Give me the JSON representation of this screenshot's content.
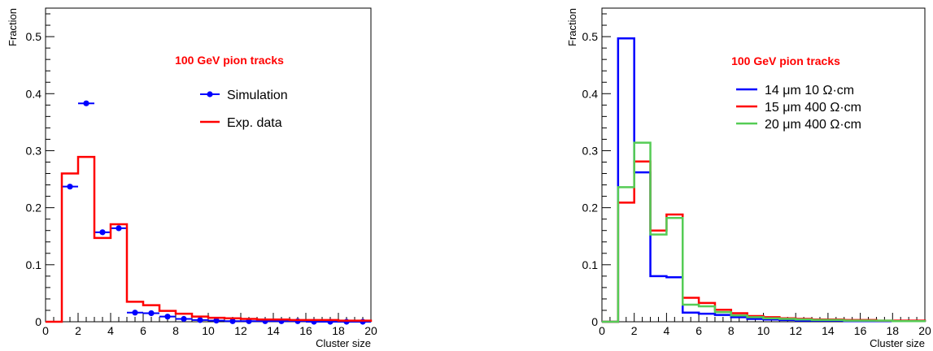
{
  "chart_data": [
    {
      "type": "histogram",
      "title": "",
      "xlabel": "Cluster size",
      "ylabel": "Fraction",
      "xlim": [
        0,
        20
      ],
      "ylim": [
        0,
        0.55
      ],
      "x_ticks": [
        0,
        2,
        4,
        6,
        8,
        10,
        12,
        14,
        16,
        18,
        20
      ],
      "y_ticks": [
        0,
        0.1,
        0.2,
        0.3,
        0.4,
        0.5
      ],
      "annotation": {
        "text": "100 GeV pion tracks",
        "color": "#ff0000"
      },
      "legend_position": "top-right",
      "bin_edges": [
        0,
        1,
        2,
        3,
        4,
        5,
        6,
        7,
        8,
        9,
        10,
        11,
        12,
        13,
        14,
        15,
        16,
        17,
        18,
        19,
        20
      ],
      "series": [
        {
          "name": "Simulation",
          "style": "markers",
          "color": "#0000ff",
          "x": [
            1.5,
            2.5,
            3.5,
            4.5,
            5.5,
            6.5,
            7.5,
            8.5,
            9.5,
            10.5,
            11.5,
            12.5,
            13.5,
            14.5,
            15.5,
            16.5,
            17.5,
            18.5,
            19.5
          ],
          "values": [
            0.237,
            0.383,
            0.157,
            0.164,
            0.016,
            0.015,
            0.009,
            0.005,
            0.003,
            0.002,
            0.001,
            0.001,
            0.001,
            0.001,
            0.001,
            0.0,
            0.0,
            0.0,
            0.0
          ]
        },
        {
          "name": "Exp. data",
          "style": "step",
          "color": "#ff0000",
          "values": [
            0.0,
            0.26,
            0.289,
            0.147,
            0.171,
            0.035,
            0.029,
            0.019,
            0.014,
            0.009,
            0.007,
            0.006,
            0.005,
            0.004,
            0.004,
            0.003,
            0.003,
            0.003,
            0.002,
            0.002
          ]
        }
      ]
    },
    {
      "type": "histogram",
      "title": "",
      "xlabel": "Cluster size",
      "ylabel": "Fraction",
      "xlim": [
        0,
        20
      ],
      "ylim": [
        0,
        0.55
      ],
      "x_ticks": [
        0,
        2,
        4,
        6,
        8,
        10,
        12,
        14,
        16,
        18,
        20
      ],
      "y_ticks": [
        0,
        0.1,
        0.2,
        0.3,
        0.4,
        0.5
      ],
      "annotation": {
        "text": "100 GeV pion tracks",
        "color": "#ff0000"
      },
      "legend_position": "top-right",
      "bin_edges": [
        0,
        1,
        2,
        3,
        4,
        5,
        6,
        7,
        8,
        9,
        10,
        11,
        12,
        13,
        14,
        15,
        16,
        17,
        18,
        19,
        20
      ],
      "series": [
        {
          "name": "14 μm 10 Ω·cm",
          "style": "step",
          "color": "#0000ff",
          "values": [
            0.0,
            0.497,
            0.262,
            0.08,
            0.078,
            0.016,
            0.014,
            0.012,
            0.008,
            0.005,
            0.004,
            0.003,
            0.002,
            0.002,
            0.002,
            0.001,
            0.001,
            0.001,
            0.001,
            0.001
          ]
        },
        {
          "name": "15 μm 400 Ω·cm",
          "style": "step",
          "color": "#ff0000",
          "values": [
            0.0,
            0.209,
            0.281,
            0.16,
            0.188,
            0.042,
            0.033,
            0.021,
            0.015,
            0.01,
            0.008,
            0.006,
            0.005,
            0.004,
            0.004,
            0.003,
            0.003,
            0.002,
            0.002,
            0.002
          ]
        },
        {
          "name": "20 μm 400 Ω·cm",
          "style": "step",
          "color": "#55cc55",
          "values": [
            0.0,
            0.236,
            0.314,
            0.153,
            0.182,
            0.03,
            0.027,
            0.017,
            0.011,
            0.008,
            0.006,
            0.005,
            0.004,
            0.003,
            0.003,
            0.002,
            0.002,
            0.002,
            0.001,
            0.001
          ]
        }
      ]
    }
  ]
}
